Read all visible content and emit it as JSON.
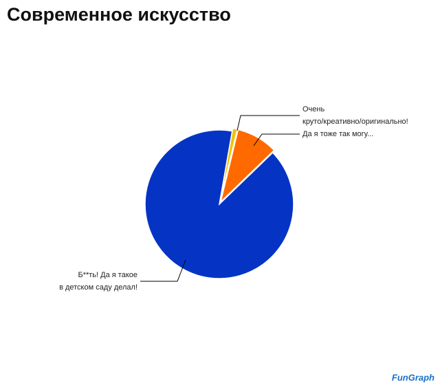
{
  "chart_data": {
    "type": "pie",
    "title": "Современное искусство",
    "categories": [
      [
        "Очень",
        "круто/креативно/оригинально!"
      ],
      [
        "Да я тоже так могу..."
      ],
      [
        "Б**ть! Да я такое",
        "в детском саду делал!"
      ]
    ],
    "values": [
      1,
      9,
      90
    ],
    "colors": [
      "#f2c200",
      "#ff6a00",
      "#0534c4"
    ],
    "watermark": "FunGraph"
  }
}
